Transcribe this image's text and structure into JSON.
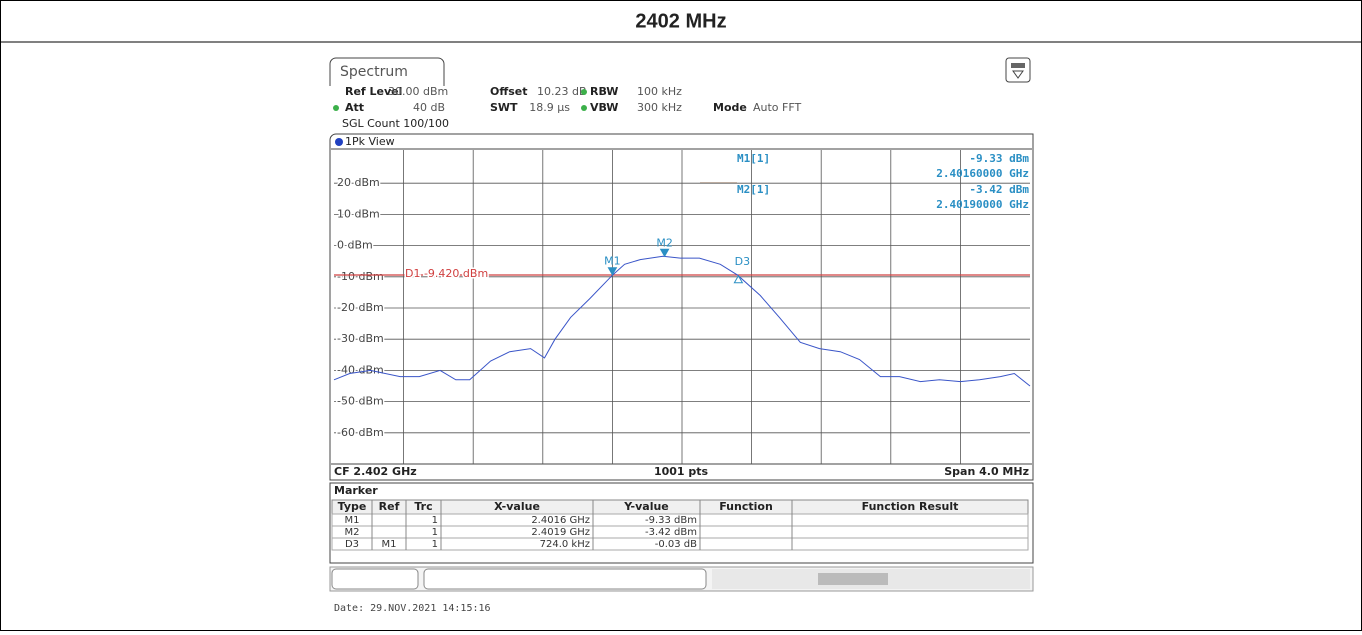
{
  "header": {
    "title": "2402 MHz"
  },
  "tab": "Spectrum",
  "settings": [
    {
      "label": "Ref Level",
      "value": "30.00 dBm"
    },
    {
      "label": "Offset",
      "value": "10.23 dB"
    },
    {
      "label": "RBW",
      "value": "100 kHz"
    },
    {
      "label": "Att",
      "value": "40 dB"
    },
    {
      "label": "SWT",
      "value": "18.9 µs"
    },
    {
      "label": "VBW",
      "value": "300 kHz"
    },
    {
      "label": "Mode",
      "value": "Auto FFT"
    }
  ],
  "sgl_count": "SGL Count 100/100",
  "plot": {
    "view": "1Pk View",
    "ylim": [
      -70,
      30
    ],
    "yticks": [
      {
        "value": 20,
        "label": "20 dBm"
      },
      {
        "value": 10,
        "label": "10 dBm"
      },
      {
        "value": 0,
        "label": "0 dBm"
      },
      {
        "value": -10,
        "label": "-10 dBm"
      },
      {
        "value": -20,
        "label": "-20 dBm"
      },
      {
        "value": -30,
        "label": "-30 dBm"
      },
      {
        "value": -40,
        "label": "-40 dBm"
      },
      {
        "value": -50,
        "label": "-50 dBm"
      },
      {
        "value": -60,
        "label": "-60 dBm"
      }
    ],
    "xlim": [
      2.4,
      2.404
    ],
    "x": [
      2.4,
      2.40009,
      2.40021,
      2.40038,
      2.40049,
      2.40061,
      2.4007,
      2.40078,
      2.4009,
      2.40101,
      2.40113,
      2.40121,
      2.40127,
      2.40136,
      2.40147,
      2.4016,
      2.40167,
      2.40176,
      2.40189,
      2.40199,
      2.4021,
      2.40222,
      2.40232,
      2.40245,
      2.40256,
      2.40268,
      2.40279,
      2.40291,
      2.40302,
      2.40314,
      2.40325,
      2.40337,
      2.40348,
      2.4036,
      2.40371,
      2.40383,
      2.40391,
      2.404
    ],
    "values": [
      -43,
      -41,
      -40,
      -42,
      -42,
      -40,
      -43,
      -43,
      -37,
      -34,
      -33,
      -36,
      -30,
      -23,
      -17,
      -9.5,
      -6,
      -4.5,
      -3.4,
      -4,
      -4,
      -6,
      -9.5,
      -16,
      -23,
      -31,
      -33,
      -34,
      -36.5,
      -42,
      -42,
      -43.6,
      -43,
      -43.6,
      -43,
      -42,
      -41,
      -45
    ],
    "color": "#3a55c8",
    "display_line": {
      "label": "D1 -9.420 dBm",
      "value": -9.42,
      "color": "#d04040"
    },
    "markers": [
      {
        "label": "M1",
        "x": 2.4016,
        "y": -9.33
      },
      {
        "label": "M2",
        "x": 2.4019,
        "y": -3.42
      },
      {
        "label": "D3",
        "x": 2.402324,
        "y": -9.36
      }
    ],
    "readout": [
      {
        "name": "M1[1]",
        "y": "-9.33 dBm",
        "x": "2.40160000 GHz"
      },
      {
        "name": "M2[1]",
        "y": "-3.42 dBm",
        "x": "2.40190000 GHz"
      }
    ],
    "footer": {
      "left": "CF 2.402 GHz",
      "center": "1001 pts",
      "right": "Span 4.0 MHz"
    }
  },
  "marker_table": {
    "title": "Marker",
    "columns": [
      "Type",
      "Ref",
      "Trc",
      "X-value",
      "Y-value",
      "Function",
      "Function Result"
    ],
    "rows": [
      {
        "type": "M1",
        "trc": "1",
        "x": "2.4016 GHz",
        "y": "-9.33 dBm"
      },
      {
        "type": "M2",
        "trc": "1",
        "x": "2.4019 GHz",
        "y": "-3.42 dBm"
      },
      {
        "type": "D3",
        "ref": "M1",
        "trc": "1",
        "x": "724.0 kHz",
        "y": "-0.03 dB"
      }
    ]
  },
  "date": "Date: 29.NOV.2021  14:15:16"
}
